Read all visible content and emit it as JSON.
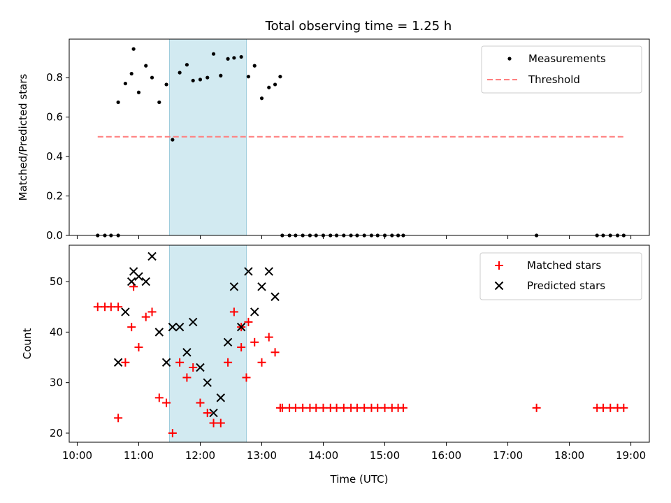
{
  "chart_data": [
    {
      "type": "scatter",
      "title": "Total observing time = 1.25 h",
      "xlabel": "",
      "ylabel": "Matched/Predicted stars",
      "xlim_hours": [
        9.87,
        19.3
      ],
      "ylim": [
        0,
        0.995
      ],
      "yticks": [
        0.0,
        0.2,
        0.4,
        0.6,
        0.8
      ],
      "shaded_span": {
        "start": "11:30",
        "end": "12:45"
      },
      "legend": {
        "placement": "top-right",
        "entries": [
          "Measurements",
          "Threshold"
        ]
      },
      "colors": {
        "measurements": "#000000",
        "threshold": "#ff7f7f",
        "span": "#add8e6"
      },
      "series": [
        {
          "name": "Measurements",
          "x": [
            "10:20",
            "10:27",
            "10:33",
            "10:40",
            "10:40",
            "10:47",
            "10:53",
            "10:55",
            "11:00",
            "11:07",
            "11:13",
            "11:20",
            "11:27",
            "11:33",
            "11:40",
            "11:47",
            "11:53",
            "12:00",
            "12:07",
            "12:13",
            "12:20",
            "12:27",
            "12:33",
            "12:40",
            "12:47",
            "12:53",
            "13:00",
            "13:07",
            "13:13",
            "13:18",
            "13:20",
            "13:27",
            "13:33",
            "13:40",
            "13:47",
            "13:53",
            "14:00",
            "14:07",
            "14:13",
            "14:20",
            "14:27",
            "14:33",
            "14:40",
            "14:47",
            "14:53",
            "15:00",
            "15:07",
            "15:13",
            "15:18",
            "17:28",
            "18:27",
            "18:33",
            "18:40",
            "18:47",
            "18:53"
          ],
          "y": [
            0,
            0,
            0,
            0,
            0.675,
            0.77,
            0.82,
            0.945,
            0.725,
            0.86,
            0.8,
            0.675,
            0.765,
            0.485,
            0.825,
            0.865,
            0.785,
            0.79,
            0.8,
            0.92,
            0.81,
            0.895,
            0.9,
            0.905,
            0.805,
            0.86,
            0.695,
            0.75,
            0.765,
            0.805,
            0,
            0,
            0,
            0,
            0,
            0,
            0,
            0,
            0,
            0,
            0,
            0,
            0,
            0,
            0,
            0,
            0,
            0,
            0,
            0,
            0,
            0,
            0,
            0,
            0
          ]
        },
        {
          "name": "Threshold",
          "x": [
            "10:20",
            "18:53"
          ],
          "y": [
            0.5,
            0.5
          ]
        }
      ]
    },
    {
      "type": "scatter",
      "title": "",
      "xlabel": "Time (UTC)",
      "ylabel": "Count",
      "xlim_hours": [
        9.87,
        19.3
      ],
      "ylim": [
        18.2,
        57.2
      ],
      "yticks": [
        20,
        30,
        40,
        50
      ],
      "xticks": [
        "10:00",
        "11:00",
        "12:00",
        "13:00",
        "14:00",
        "15:00",
        "16:00",
        "17:00",
        "18:00",
        "19:00"
      ],
      "shaded_span": {
        "start": "11:30",
        "end": "12:45"
      },
      "legend": {
        "placement": "top-right",
        "entries": [
          "Matched stars",
          "Predicted stars"
        ]
      },
      "colors": {
        "matched": "#ff0000",
        "predicted": "#000000",
        "span": "#add8e6"
      },
      "series": [
        {
          "name": "Matched stars",
          "x": [
            "10:20",
            "10:27",
            "10:33",
            "10:40",
            "10:40",
            "10:47",
            "10:53",
            "10:55",
            "11:00",
            "11:07",
            "11:13",
            "11:20",
            "11:27",
            "11:33",
            "11:40",
            "11:47",
            "11:53",
            "12:00",
            "12:07",
            "12:13",
            "12:20",
            "12:27",
            "12:33",
            "12:40",
            "12:47",
            "12:53",
            "13:00",
            "13:07",
            "13:13",
            "13:18",
            "13:20",
            "13:27",
            "13:33",
            "13:40",
            "13:47",
            "13:53",
            "14:00",
            "14:07",
            "14:13",
            "14:20",
            "14:27",
            "14:33",
            "14:40",
            "14:47",
            "14:53",
            "15:00",
            "15:07",
            "15:13",
            "15:18",
            "17:28",
            "18:27",
            "18:33",
            "18:40",
            "18:47",
            "18:53"
          ],
          "y": [
            45,
            45,
            45,
            45,
            23,
            34,
            41,
            49,
            37,
            43,
            44,
            27,
            26,
            20,
            34,
            31,
            33,
            26,
            24,
            22,
            22,
            34,
            44,
            37,
            42,
            38,
            34,
            39,
            36,
            25,
            25,
            25,
            25,
            25,
            25,
            25,
            25,
            25,
            25,
            25,
            25,
            25,
            25,
            25,
            25,
            25,
            25,
            25,
            25,
            25,
            25,
            25,
            25,
            25,
            25
          ]
        },
        {
          "name": "Predicted stars",
          "x": [
            "10:40",
            "10:47",
            "10:53",
            "10:55",
            "11:00",
            "11:07",
            "11:13",
            "11:20",
            "11:27",
            "11:33",
            "11:40",
            "11:47",
            "11:53",
            "12:00",
            "12:07",
            "12:13",
            "12:20",
            "12:27",
            "12:33",
            "12:40",
            "12:47",
            "12:53",
            "13:00",
            "13:07",
            "13:13"
          ],
          "y": [
            34,
            44,
            50,
            52,
            51,
            50,
            55,
            40,
            34,
            41,
            41,
            36,
            42,
            33,
            30,
            24,
            27,
            38,
            49,
            41,
            52,
            44,
            49,
            52,
            47
          ]
        }
      ]
    }
  ],
  "extra_points": {
    "matched_x": [
      "12:40",
      "12:45"
    ],
    "matched_y": [
      41,
      31
    ],
    "predicted_x": [],
    "predicted_y": []
  }
}
